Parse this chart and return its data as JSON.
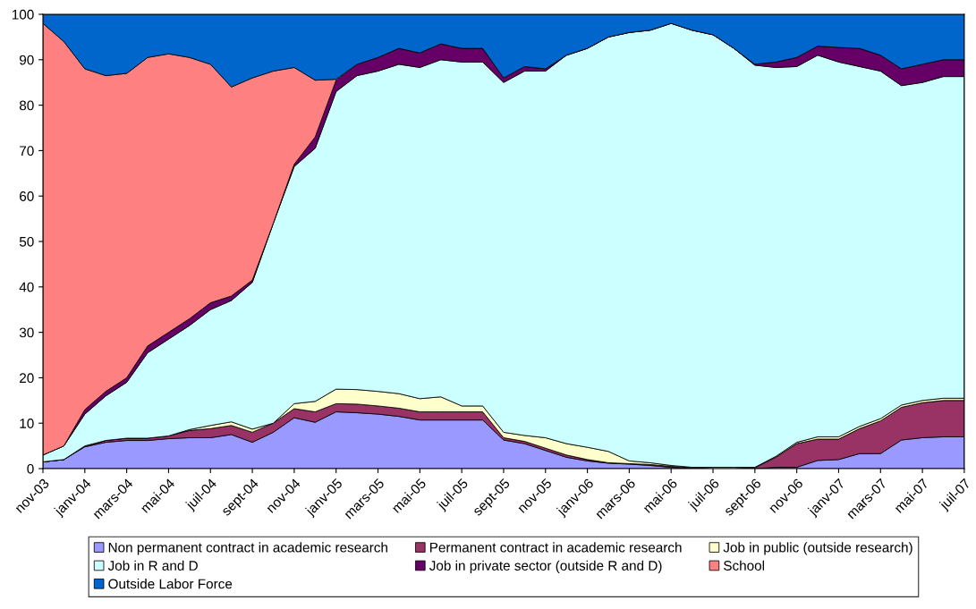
{
  "chart_data": {
    "type": "area",
    "stacked": true,
    "categories": [
      "nov-03",
      null,
      "janv-04",
      null,
      "mars-04",
      null,
      "mai-04",
      null,
      "juil-04",
      null,
      "sept-04",
      null,
      "nov-04",
      null,
      "janv-05",
      null,
      "mars-05",
      null,
      "mai-05",
      null,
      "juil-05",
      null,
      "sept-05",
      null,
      "nov-05",
      null,
      "janv-06",
      null,
      "mars-06",
      null,
      "mai-06",
      null,
      "juil-06",
      null,
      "sept-06",
      null,
      "nov-06",
      null,
      "janv-07",
      null,
      "mars-07",
      null,
      "mai-07",
      null,
      "juil-07"
    ],
    "ylim": [
      0,
      100
    ],
    "yticks": [
      0,
      10,
      20,
      30,
      40,
      50,
      60,
      70,
      80,
      90,
      100
    ],
    "grid": false,
    "legend": "bottom",
    "series": [
      {
        "name": "Non permanent contract in academic research",
        "color": "#9999ff",
        "values": [
          1.5,
          2,
          4.8,
          5.8,
          6.2,
          6.2,
          6.6,
          6.8,
          6.8,
          7.5,
          5.8,
          8,
          11.2,
          10.2,
          12.5,
          12.3,
          12,
          11.5,
          10.7,
          10.7,
          10.7,
          10.7,
          6.3,
          5.5,
          4,
          2.5,
          1.7,
          1.2,
          1,
          0.7,
          0.3,
          0,
          0,
          0,
          0,
          0.3,
          0.3,
          1.8,
          2,
          3.3,
          3.3,
          6.3,
          6.8,
          7,
          7
        ]
      },
      {
        "name": "Permanent contract in academic research",
        "color": "#993366",
        "values": [
          0,
          0,
          0.2,
          0.4,
          0.5,
          0.5,
          0.6,
          1.6,
          2,
          2,
          2.2,
          2,
          2,
          2.3,
          1.8,
          1.9,
          1.8,
          1.8,
          1.8,
          1.8,
          1.8,
          1.8,
          0.5,
          0.5,
          0.5,
          0.5,
          0.3,
          0.1,
          0.1,
          0.2,
          0.2,
          0.2,
          0,
          0,
          0.2,
          2.2,
          5.2,
          4.7,
          4.5,
          5.5,
          7.2,
          7.2,
          7.7,
          8,
          8
        ]
      },
      {
        "name": "Job in public (outside research)",
        "color": "#ffffcc",
        "values": [
          0,
          0,
          0,
          0,
          0,
          0,
          0,
          0.2,
          0.7,
          0.8,
          0.7,
          0,
          1.1,
          2.3,
          3.2,
          3.2,
          3.2,
          3.2,
          2.9,
          3.3,
          1.3,
          1.3,
          1.2,
          1.3,
          2.3,
          2.5,
          2.7,
          2.5,
          0.6,
          0.4,
          0.2,
          0.1,
          0.3,
          0.3,
          0.1,
          0.2,
          0.3,
          0.5,
          0.5,
          0.5,
          0.5,
          0.5,
          0.5,
          0.5,
          0.5
        ]
      },
      {
        "name": "Job in R and D",
        "color": "#ccffff",
        "values": [
          1.5,
          3,
          7,
          9.8,
          12.3,
          18.8,
          21.3,
          22.9,
          25.5,
          26.7,
          32.3,
          44,
          52.2,
          55.7,
          65.5,
          69.1,
          70.5,
          72.5,
          72.9,
          74.2,
          75.7,
          75.7,
          77,
          80.2,
          80.7,
          85.5,
          87.8,
          91.2,
          94.3,
          95.2,
          97.3,
          96.2,
          95.2,
          92.2,
          88.5,
          85.6,
          82.7,
          84,
          82.5,
          79.2,
          76.5,
          70.3,
          70,
          70.8,
          70.8
        ]
      },
      {
        "name": "Job in private sector (outside R and D)",
        "color": "#660066",
        "values": [
          0,
          0,
          1,
          1,
          1,
          1.5,
          1.5,
          1.5,
          1.5,
          1,
          0.5,
          0,
          0.5,
          2.5,
          2.5,
          2.5,
          3,
          3.5,
          3.2,
          3.5,
          3,
          3,
          1,
          1,
          0.5,
          0,
          0,
          0,
          0,
          0,
          0,
          0,
          0,
          0,
          0.2,
          1.2,
          2,
          2,
          3.2,
          4,
          3.5,
          3.7,
          4,
          3.7,
          3.7
        ]
      },
      {
        "name": "School",
        "color": "#ff8080",
        "values": [
          95,
          89,
          75,
          69.5,
          67,
          63.5,
          61.3,
          57.5,
          52.5,
          46,
          44.5,
          33.5,
          21.3,
          12.5,
          0.2,
          null,
          null,
          null,
          null,
          null,
          null,
          null,
          null,
          null,
          null,
          null,
          null,
          null,
          null,
          null,
          null,
          null,
          null,
          null,
          null,
          null,
          null,
          null,
          null,
          null,
          null,
          null,
          null,
          null,
          null
        ]
      },
      {
        "name": "Outside Labor Force",
        "color": "#0066cc",
        "values": [
          2,
          6,
          12,
          13.5,
          13,
          9.5,
          8.7,
          9.5,
          11,
          16,
          14,
          12.5,
          11.7,
          14.5,
          14.3,
          11,
          9.5,
          7.5,
          8.5,
          6.5,
          7.5,
          7.5,
          14,
          11.5,
          12,
          9,
          7.5,
          5,
          4,
          3.5,
          2,
          3.5,
          4.5,
          7.5,
          11,
          10.5,
          9.5,
          7,
          7.3,
          7.5,
          9,
          12,
          11,
          10,
          10
        ]
      }
    ]
  }
}
